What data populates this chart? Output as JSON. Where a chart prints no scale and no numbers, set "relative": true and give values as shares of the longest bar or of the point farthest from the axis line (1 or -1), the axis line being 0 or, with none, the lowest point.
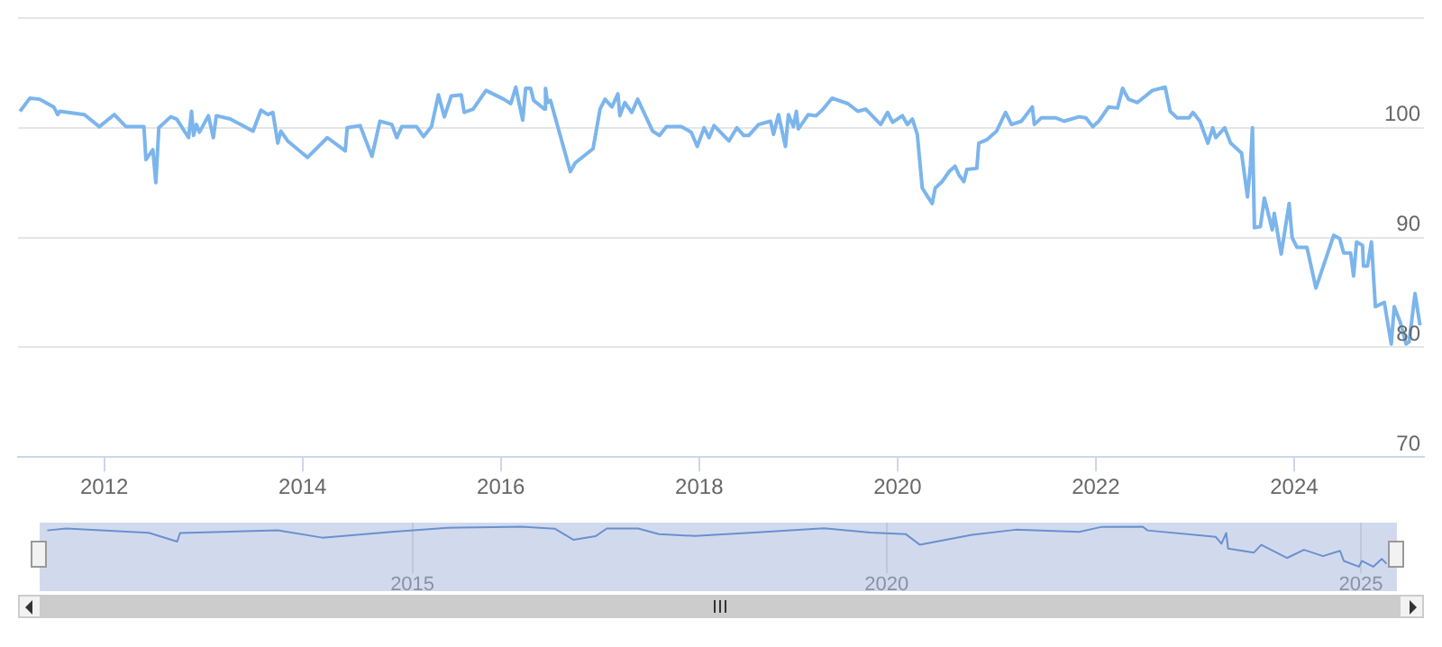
{
  "chart_data": [
    {
      "type": "line",
      "x": [
        2011.15,
        2011.25,
        2011.35,
        2011.49,
        2011.53,
        2011.55,
        2011.8,
        2011.95,
        2012.1,
        2012.22,
        2012.4,
        2012.42,
        2012.49,
        2012.52,
        2012.55,
        2012.67,
        2012.73,
        2012.85,
        2012.88,
        2012.9,
        2012.93,
        2012.96,
        2013.05,
        2013.1,
        2013.13,
        2013.27,
        2013.5,
        2013.58,
        2013.65,
        2013.7,
        2013.75,
        2013.78,
        2013.85,
        2014.05,
        2014.25,
        2014.43,
        2014.45,
        2014.58,
        2014.7,
        2014.78,
        2014.9,
        2014.95,
        2015.0,
        2015.15,
        2015.22,
        2015.3,
        2015.37,
        2015.43,
        2015.5,
        2015.6,
        2015.63,
        2015.72,
        2015.85,
        2016.03,
        2016.1,
        2016.15,
        2016.22,
        2016.25,
        2016.3,
        2016.33,
        2016.44,
        2016.45,
        2016.47,
        2016.5,
        2016.7,
        2016.75,
        2016.93,
        2017.0,
        2017.05,
        2017.12,
        2017.18,
        2017.2,
        2017.25,
        2017.32,
        2017.38,
        2017.53,
        2017.6,
        2017.67,
        2017.82,
        2017.92,
        2017.98,
        2018.05,
        2018.1,
        2018.15,
        2018.3,
        2018.38,
        2018.45,
        2018.5,
        2018.6,
        2018.72,
        2018.75,
        2018.8,
        2018.87,
        2018.9,
        2018.95,
        2018.98,
        2019.0,
        2019.1,
        2019.18,
        2019.25,
        2019.34,
        2019.5,
        2019.6,
        2019.68,
        2019.83,
        2019.9,
        2019.95,
        2020.05,
        2020.1,
        2020.15,
        2020.2,
        2020.25,
        2020.3,
        2020.35,
        2020.38,
        2020.45,
        2020.52,
        2020.58,
        2020.62,
        2020.67,
        2020.7,
        2020.8,
        2020.82,
        2020.9,
        2021.0,
        2021.09,
        2021.15,
        2021.25,
        2021.36,
        2021.38,
        2021.45,
        2021.6,
        2021.68,
        2021.83,
        2021.9,
        2021.97,
        2022.03,
        2022.13,
        2022.22,
        2022.27,
        2022.33,
        2022.42,
        2022.57,
        2022.7,
        2022.75,
        2022.82,
        2022.94,
        2022.98,
        2023.05,
        2023.13,
        2023.18,
        2023.21,
        2023.3,
        2023.36,
        2023.47,
        2023.53,
        2023.56,
        2023.58,
        2023.6,
        2023.66,
        2023.7,
        2023.78,
        2023.8,
        2023.87,
        2023.95,
        2023.98,
        2024.03,
        2024.13,
        2024.22,
        2024.4,
        2024.46,
        2024.5,
        2024.57,
        2024.6,
        2024.63,
        2024.69,
        2024.7,
        2024.74,
        2024.78,
        2024.82,
        2024.91,
        2024.98,
        2025.01,
        2025.07,
        2025.13,
        2025.16,
        2025.22,
        2025.27
      ],
      "series": [
        {
          "color": "#7cb5ec",
          "values": [
            101.5,
            102.7,
            102.6,
            101.9,
            101.2,
            101.5,
            101.2,
            100.1,
            101.2,
            100.1,
            100.1,
            97.1,
            98,
            95,
            100,
            101,
            100.8,
            99.1,
            101.5,
            99.3,
            100.3,
            99.6,
            101.1,
            99.1,
            101.1,
            100.8,
            99.7,
            101.6,
            101.2,
            101.4,
            98.6,
            99.7,
            98.8,
            97.3,
            99.1,
            97.9,
            100,
            100.2,
            97.4,
            100.6,
            100.3,
            99.1,
            100.1,
            100.1,
            99.2,
            100.1,
            103,
            101,
            102.9,
            103,
            101.4,
            101.7,
            103.4,
            102.6,
            102.2,
            103.7,
            100.7,
            103.6,
            103.6,
            102.5,
            101.7,
            103.6,
            102.3,
            102.5,
            96,
            96.8,
            98.1,
            101.7,
            102.6,
            101.9,
            103.1,
            101.1,
            102.3,
            101.4,
            102.6,
            99.7,
            99.3,
            100.1,
            100.1,
            99.6,
            98.3,
            100,
            99.1,
            100.2,
            98.8,
            100,
            99.3,
            99.3,
            100.3,
            100.6,
            99.4,
            101.2,
            98.3,
            101.2,
            100.1,
            101.5,
            99.9,
            101.2,
            101.1,
            101.7,
            102.7,
            102.2,
            101.5,
            101.7,
            100.3,
            101.4,
            100.5,
            101.1,
            100.3,
            100.8,
            99.4,
            94.5,
            93.8,
            93.1,
            94.5,
            95.1,
            96,
            96.5,
            95.7,
            95.1,
            96.2,
            96.3,
            98.6,
            98.9,
            99.7,
            101.4,
            100.3,
            100.6,
            101.9,
            100.3,
            100.9,
            100.9,
            100.6,
            101,
            100.9,
            100.1,
            100.6,
            101.9,
            101.8,
            103.6,
            102.6,
            102.3,
            103.4,
            103.7,
            101.5,
            100.9,
            100.9,
            101.4,
            100.6,
            98.6,
            100,
            99.1,
            100,
            98.6,
            97.7,
            93.7,
            96.6,
            100,
            90.9,
            91,
            93.6,
            90.7,
            92.2,
            88.5,
            93.1,
            90,
            89.1,
            89.1,
            85.4,
            90.2,
            89.9,
            88.6,
            88.6,
            86.5,
            89.6,
            89.3,
            87.4,
            87.4,
            89.6,
            83.7,
            84.1,
            80.3,
            83.7,
            82.3,
            80.3,
            80.5,
            84.9,
            82
          ]
        }
      ],
      "xlim": [
        2011.13,
        2025.31
      ],
      "ylim": [
        70,
        110
      ],
      "xticks": [
        2012,
        2014,
        2016,
        2018,
        2020,
        2022,
        2024
      ],
      "yticks": [
        70,
        80,
        90,
        100,
        {
          "value": 110,
          "label": null
        }
      ],
      "grid": "y"
    },
    {
      "type": "line",
      "series": [
        {
          "color": "#6b96d6",
          "x": [
            2011.15,
            2011.35,
            2012.22,
            2012.52,
            2012.55,
            2013.58,
            2014.05,
            2014.78,
            2015.37,
            2015.85,
            2016.15,
            2016.5,
            2016.7,
            2016.93,
            2017.05,
            2017.38,
            2017.6,
            2017.98,
            2018.6,
            2019.34,
            2019.83,
            2020.2,
            2020.35,
            2020.9,
            2021.36,
            2022.03,
            2022.27,
            2022.7,
            2022.75,
            2023.47,
            2023.53,
            2023.58,
            2023.6,
            2023.87,
            2023.95,
            2024.22,
            2024.4,
            2024.6,
            2024.78,
            2024.82,
            2024.98,
            2025.01,
            2025.13,
            2025.22,
            2025.27
          ],
          "values": [
            0.906,
            0.953,
            0.846,
            0.628,
            0.842,
            0.91,
            0.726,
            0.868,
            0.97,
            0.987,
            1,
            0.949,
            0.671,
            0.761,
            0.953,
            0.953,
            0.812,
            0.769,
            0.855,
            0.957,
            0.855,
            0.816,
            0.547,
            0.795,
            0.923,
            0.868,
            0.996,
            1,
            0.906,
            0.744,
            0.573,
            0.842,
            0.453,
            0.35,
            0.547,
            0.218,
            0.423,
            0.265,
            0.397,
            0.145,
            0,
            0.145,
            0,
            0.197,
            0.073
          ]
        }
      ],
      "relative": true,
      "xlim": [
        2011.07,
        2025.38
      ],
      "xticks": [
        2015,
        2020,
        2025
      ],
      "tick_labels": "x",
      "grid": "x"
    }
  ]
}
